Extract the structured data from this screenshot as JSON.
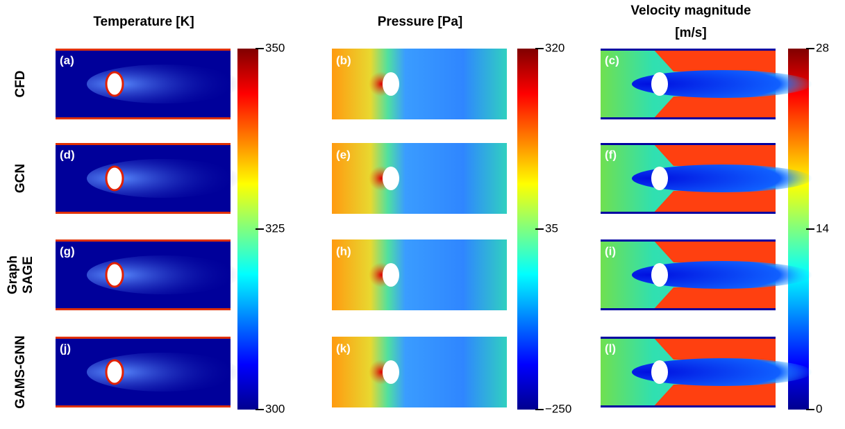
{
  "columns": [
    {
      "title": [
        "Temperature [K]"
      ],
      "colorbar": {
        "ticks": [
          300,
          325,
          350
        ]
      }
    },
    {
      "title": [
        "Pressure [Pa]"
      ],
      "colorbar": {
        "ticks": [
          {
            "value": -250,
            "label": "−250"
          },
          35,
          320
        ]
      }
    },
    {
      "title": [
        "Velocity magnitude",
        "[m/s]"
      ],
      "colorbar": {
        "ticks": [
          0,
          14,
          28
        ]
      }
    }
  ],
  "rows": [
    {
      "label": [
        "CFD"
      ],
      "panels": [
        "(a)",
        "(b)",
        "(c)"
      ]
    },
    {
      "label": [
        "GCN"
      ],
      "panels": [
        "(d)",
        "(e)",
        "(f)"
      ]
    },
    {
      "label": [
        "Graph",
        "SAGE"
      ],
      "panels": [
        "(g)",
        "(h)",
        "(i)"
      ]
    },
    {
      "label": [
        "GAMS-GNN"
      ],
      "panels": [
        "(j)",
        "(k)",
        "(l)"
      ]
    }
  ]
}
